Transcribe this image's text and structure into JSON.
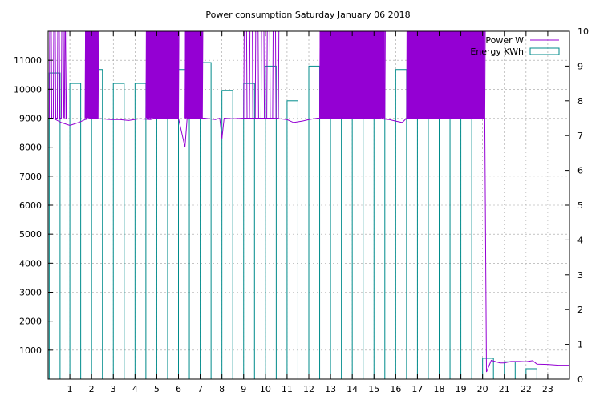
{
  "chart_data": {
    "type": "bar",
    "title": "Power consumption Saturday January 06 2018",
    "x": {
      "range": [
        0,
        24
      ],
      "ticks": [
        1,
        2,
        3,
        4,
        5,
        6,
        7,
        8,
        9,
        10,
        11,
        12,
        13,
        14,
        15,
        16,
        17,
        18,
        19,
        20,
        21,
        22,
        23
      ],
      "tick_labels": [
        "1",
        "2",
        "3",
        "4",
        "5",
        "6",
        "7",
        "8",
        "9",
        "10",
        "11",
        "12",
        "13",
        "14",
        "15",
        "16",
        "17",
        "18",
        "19",
        "20",
        "21",
        "22",
        "23"
      ]
    },
    "y_left": {
      "range": [
        0,
        12000
      ],
      "ticks": [
        1000,
        2000,
        3000,
        4000,
        5000,
        6000,
        7000,
        8000,
        9000,
        10000,
        11000
      ],
      "tick_labels": [
        "1000",
        "2000",
        "3000",
        "4000",
        "5000",
        "6000",
        "7000",
        "8000",
        "9000",
        "10000",
        "11000"
      ]
    },
    "y_right": {
      "range": [
        0,
        10
      ],
      "ticks": [
        0,
        1,
        2,
        3,
        4,
        5,
        6,
        7,
        8,
        9,
        10
      ],
      "tick_labels": [
        "0",
        "1",
        "2",
        "3",
        "4",
        "5",
        "6",
        "7",
        "8",
        "9",
        "10"
      ]
    },
    "grid": true,
    "legend_position": "top-right",
    "series": [
      {
        "name": "Power W",
        "type": "line",
        "axis": "left",
        "color": "#9400d3",
        "baseline": [
          [
            0.0,
            9000
          ],
          [
            0.3,
            8970
          ],
          [
            0.6,
            8850
          ],
          [
            1.0,
            8750
          ],
          [
            1.4,
            8850
          ],
          [
            1.7,
            8950
          ],
          [
            2.0,
            9000
          ],
          [
            2.4,
            8980
          ],
          [
            2.9,
            8950
          ],
          [
            3.3,
            8950
          ],
          [
            3.7,
            8920
          ],
          [
            4.2,
            8980
          ],
          [
            4.7,
            8950
          ],
          [
            5.0,
            9000
          ],
          [
            5.6,
            9000
          ],
          [
            6.0,
            9000
          ],
          [
            6.3,
            8000
          ],
          [
            6.4,
            9000
          ],
          [
            7.2,
            9000
          ],
          [
            7.7,
            8950
          ],
          [
            7.9,
            9000
          ],
          [
            8.0,
            8300
          ],
          [
            8.1,
            9000
          ],
          [
            8.5,
            8980
          ],
          [
            9.0,
            9000
          ],
          [
            9.5,
            9000
          ],
          [
            10.4,
            9000
          ],
          [
            11.0,
            8950
          ],
          [
            11.3,
            8850
          ],
          [
            11.7,
            8900
          ],
          [
            12.0,
            8950
          ],
          [
            12.4,
            9000
          ],
          [
            13.0,
            9000
          ],
          [
            15.0,
            9000
          ],
          [
            15.7,
            8950
          ],
          [
            16.0,
            8900
          ],
          [
            16.3,
            8850
          ],
          [
            16.5,
            9000
          ],
          [
            17.5,
            9000
          ],
          [
            19.0,
            9000
          ],
          [
            19.9,
            9000
          ],
          [
            20.1,
            9000
          ],
          [
            20.18,
            250
          ],
          [
            20.4,
            650
          ],
          [
            20.8,
            560
          ],
          [
            21.0,
            560
          ],
          [
            21.3,
            610
          ],
          [
            21.7,
            610
          ],
          [
            22.0,
            600
          ],
          [
            22.3,
            640
          ],
          [
            22.5,
            520
          ],
          [
            23.0,
            510
          ],
          [
            23.5,
            480
          ],
          [
            24.0,
            480
          ]
        ],
        "bursts": [
          {
            "from": 0.05,
            "to": 0.7,
            "low": 9000,
            "high": 12000,
            "density": 7
          },
          {
            "from": 0.75,
            "to": 0.85,
            "low": 9000,
            "high": 12000,
            "density": 2
          },
          {
            "from": 1.7,
            "to": 2.3,
            "low": 9000,
            "high": 12000,
            "density": 30
          },
          {
            "from": 4.5,
            "to": 6.0,
            "low": 9000,
            "high": 12000,
            "density": 40
          },
          {
            "from": 6.3,
            "to": 7.1,
            "low": 9000,
            "high": 12000,
            "density": 40
          },
          {
            "from": 9.0,
            "to": 10.6,
            "low": 9000,
            "high": 12000,
            "density": 12
          },
          {
            "from": 12.5,
            "to": 15.5,
            "low": 9000,
            "high": 12000,
            "density": 60
          },
          {
            "from": 16.5,
            "to": 20.1,
            "low": 9000,
            "high": 12000,
            "density": 80
          }
        ]
      },
      {
        "name": "Energy KWh",
        "type": "bar",
        "axis": "right",
        "color": "#008b8b",
        "bars": [
          {
            "x": 0.05,
            "value": 8.8
          },
          {
            "x": 1.0,
            "value": 8.5
          },
          {
            "x": 2.0,
            "value": 8.9
          },
          {
            "x": 3.0,
            "value": 8.5
          },
          {
            "x": 4.0,
            "value": 8.5
          },
          {
            "x": 5.0,
            "value": 9.2
          },
          {
            "x": 6.0,
            "value": 8.9
          },
          {
            "x": 7.0,
            "value": 9.1
          },
          {
            "x": 8.0,
            "value": 8.3
          },
          {
            "x": 9.0,
            "value": 8.5
          },
          {
            "x": 10.0,
            "value": 9.0
          },
          {
            "x": 11.0,
            "value": 8.0
          },
          {
            "x": 12.0,
            "value": 9.0
          },
          {
            "x": 13.0,
            "value": 9.0
          },
          {
            "x": 14.0,
            "value": 9.0
          },
          {
            "x": 15.0,
            "value": 8.5
          },
          {
            "x": 16.0,
            "value": 8.9
          },
          {
            "x": 17.0,
            "value": 9.1
          },
          {
            "x": 18.0,
            "value": 9.3
          },
          {
            "x": 19.0,
            "value": 9.1
          },
          {
            "x": 20.0,
            "value": 0.6
          },
          {
            "x": 21.0,
            "value": 0.5
          },
          {
            "x": 22.0,
            "value": 0.3
          }
        ]
      }
    ]
  }
}
